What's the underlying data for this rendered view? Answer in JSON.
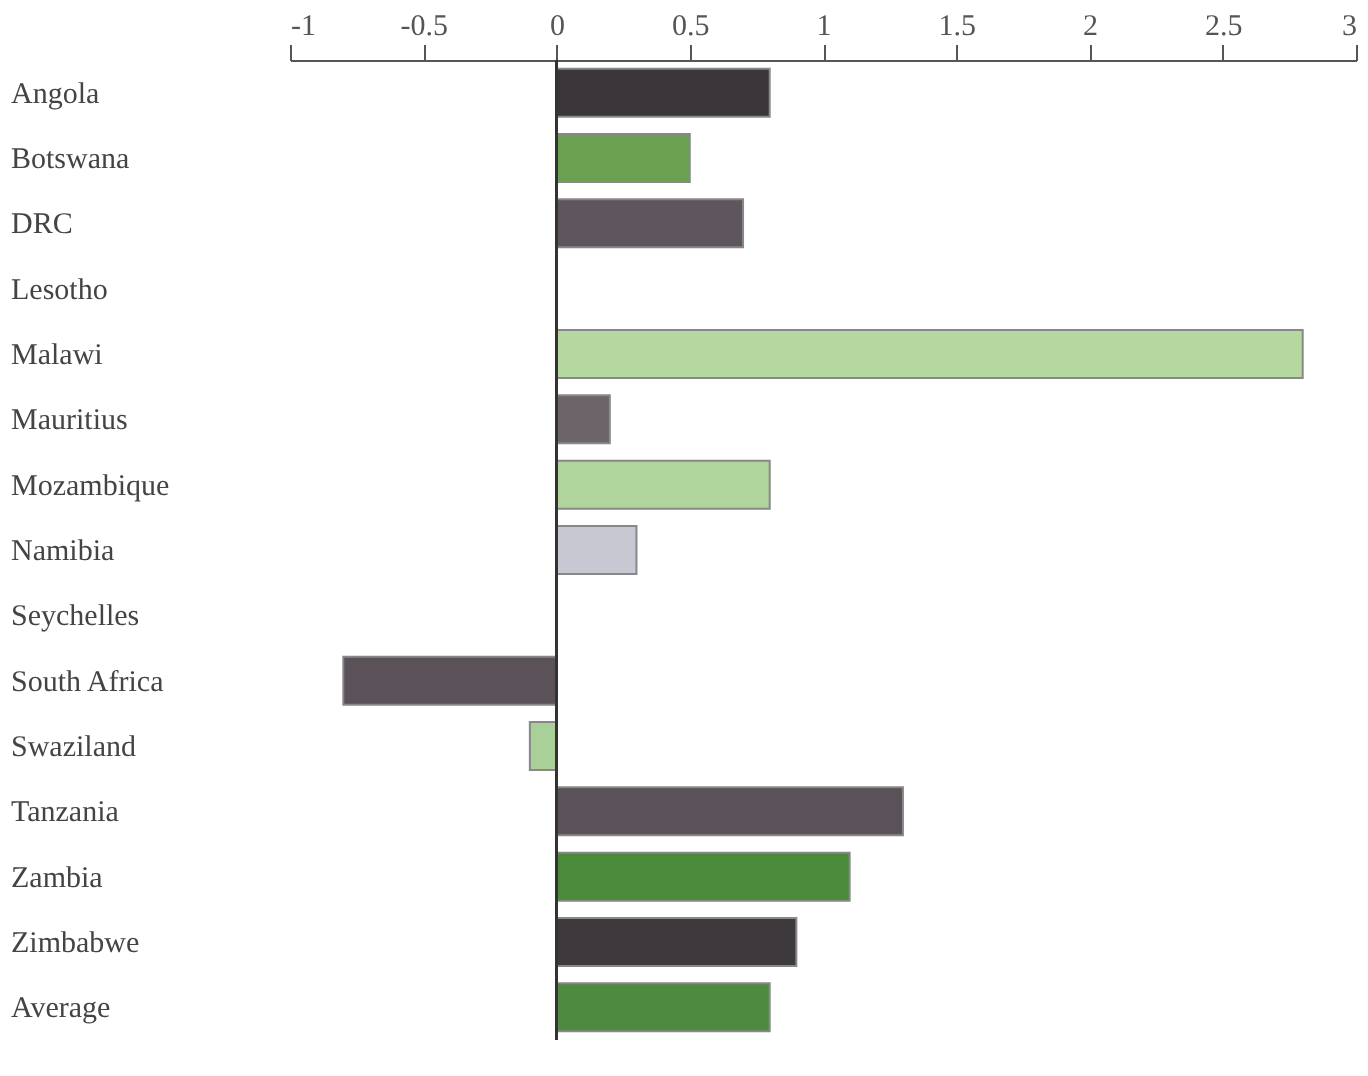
{
  "chart_data": {
    "type": "bar",
    "orientation": "horizontal",
    "categories": [
      "Angola",
      "Botswana",
      "DRC",
      "Lesotho",
      "Malawi",
      "Mauritius",
      "Mozambique",
      "Namibia",
      "Seychelles",
      "South Africa",
      "Swaziland",
      "Tanzania",
      "Zambia",
      "Zimbabwe",
      "Average"
    ],
    "values": [
      0.8,
      0.5,
      0.7,
      null,
      2.8,
      0.2,
      0.8,
      0.3,
      null,
      -0.8,
      -0.1,
      1.3,
      1.1,
      0.9,
      0.8
    ],
    "colors": [
      "#3a3539",
      "#6aa050",
      "#5e565c",
      "#b5d8a0",
      "#b5d8a0",
      "#6c6468",
      "#b0d59c",
      "#c8c8d2",
      "#5a5258",
      "#5a5258",
      "#a8d098",
      "#5a5258",
      "#4a8a3a",
      "#3e393d",
      "#4e8a40"
    ],
    "xlim": [
      -1,
      3
    ],
    "xticks": [
      -1,
      -0.5,
      0,
      0.5,
      1,
      1.5,
      2,
      2.5,
      3
    ],
    "ref_lines": [
      {
        "axis": "x",
        "value": 0,
        "color": "#333333"
      }
    ],
    "grid": false
  }
}
